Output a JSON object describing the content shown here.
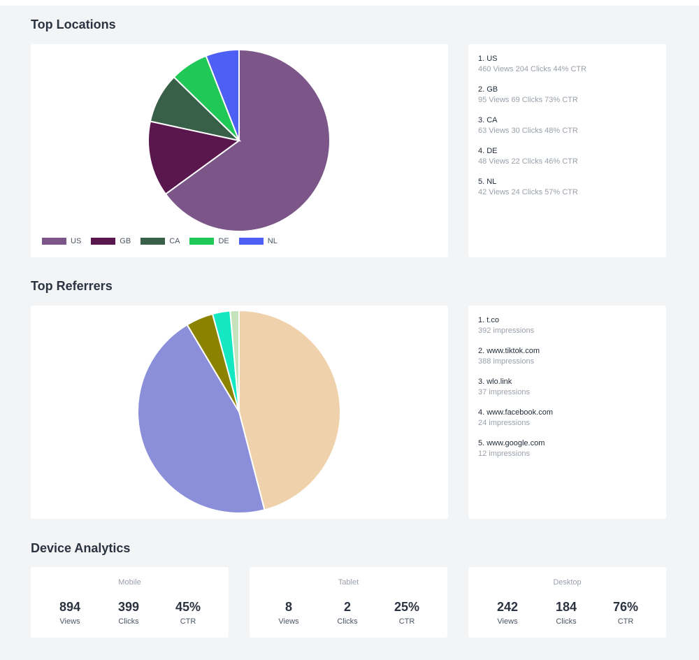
{
  "sections": {
    "locations_title": "Top Locations",
    "referrers_title": "Top Referrers",
    "devices_title": "Device Analytics"
  },
  "locations": {
    "items": [
      {
        "name": "1. US",
        "stats": "460 Views 204 Clicks 44% CTR"
      },
      {
        "name": "2. GB",
        "stats": "95 Views 69 Clicks 73% CTR"
      },
      {
        "name": "3. CA",
        "stats": "63 Views 30 Clicks 48% CTR"
      },
      {
        "name": "4. DE",
        "stats": "48 Views 22 Clicks 46% CTR"
      },
      {
        "name": "5. NL",
        "stats": "42 Views 24 Clicks 57% CTR"
      }
    ]
  },
  "referrers": {
    "items": [
      {
        "name": "1. t.co",
        "stats": "392 impressions"
      },
      {
        "name": "2. www.tiktok.com",
        "stats": "388 impressions"
      },
      {
        "name": "3. wlo.link",
        "stats": "37 impressions"
      },
      {
        "name": "4. www.facebook.com",
        "stats": "24 impressions"
      },
      {
        "name": "5. www.google.com",
        "stats": "12 impressions"
      }
    ]
  },
  "devices": {
    "mobile": {
      "title": "Mobile",
      "views": "894",
      "clicks": "399",
      "ctr": "45%",
      "views_label": "Views",
      "clicks_label": "Clicks",
      "ctr_label": "CTR"
    },
    "tablet": {
      "title": "Tablet",
      "views": "8",
      "clicks": "2",
      "ctr": "25%",
      "views_label": "Views",
      "clicks_label": "Clicks",
      "ctr_label": "CTR"
    },
    "desktop": {
      "title": "Desktop",
      "views": "242",
      "clicks": "184",
      "ctr": "76%",
      "views_label": "Views",
      "clicks_label": "Clicks",
      "ctr_label": "CTR"
    }
  },
  "chart_data": [
    {
      "type": "pie",
      "categories": [
        "US",
        "GB",
        "CA",
        "DE",
        "NL"
      ],
      "values": [
        460,
        95,
        63,
        48,
        42
      ],
      "colors": [
        "#7c5689",
        "#5a174e",
        "#385f47",
        "#20c857",
        "#4e5ff5"
      ],
      "legend": "bottom-left"
    },
    {
      "type": "pie",
      "categories": [
        "t.co",
        "www.tiktok.com",
        "wlo.link",
        "www.facebook.com",
        "www.google.com"
      ],
      "values": [
        392,
        388,
        37,
        24,
        12
      ],
      "colors": [
        "#efd2ab",
        "#8b8fda",
        "#8b8300",
        "#14e8c3",
        "#c6e2bd"
      ]
    }
  ]
}
